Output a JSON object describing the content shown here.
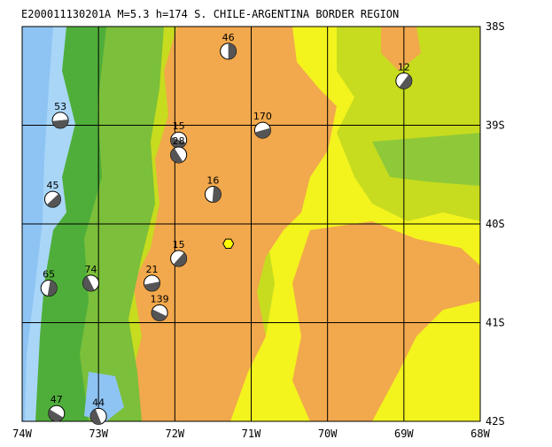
{
  "title": "E200011130201A M=5.3 h=174 S. CHILE-ARGENTINA BORDER REGION",
  "map": {
    "lon_range": [
      -74,
      -68
    ],
    "lat_range": [
      -42,
      -38
    ],
    "x_ticks": [
      "74W",
      "73W",
      "72W",
      "71W",
      "70W",
      "69W",
      "68W"
    ],
    "y_ticks": [
      "38S",
      "39S",
      "40S",
      "41S",
      "42S"
    ],
    "colors": {
      "ocean": "#8ec4f4",
      "shelf": "#a9d6f7",
      "lowland_green": "#4fae3a",
      "green": "#7bbf3a",
      "yellow_green": "#c7dc1e",
      "yellow": "#f3f31e",
      "orange": "#f2a84c",
      "grid": "#000000",
      "epicenter": "#ffff00"
    }
  },
  "epicenter": {
    "lon": -71.3,
    "lat": -40.2
  },
  "mechanisms": [
    {
      "label": "46",
      "lon": -71.3,
      "lat": -38.25
    },
    {
      "label": "12",
      "lon": -69.0,
      "lat": -38.55
    },
    {
      "label": "170",
      "lon": -70.85,
      "lat": -39.05
    },
    {
      "label": "15",
      "lon": -71.95,
      "lat": -39.15
    },
    {
      "label": "28",
      "lon": -71.95,
      "lat": -39.3
    },
    {
      "label": "16",
      "lon": -71.5,
      "lat": -39.7
    },
    {
      "label": "15",
      "lon": -71.95,
      "lat": -40.35
    },
    {
      "label": "21",
      "lon": -72.3,
      "lat": -40.6
    },
    {
      "label": "139",
      "lon": -72.2,
      "lat": -40.9
    },
    {
      "label": "74",
      "lon": -73.1,
      "lat": -40.6
    },
    {
      "label": "65",
      "lon": -73.65,
      "lat": -40.65
    },
    {
      "label": "45",
      "lon": -73.6,
      "lat": -39.75
    },
    {
      "label": "53",
      "lon": -73.5,
      "lat": -38.95
    },
    {
      "label": "47",
      "lon": -73.55,
      "lat": -41.92
    },
    {
      "label": "44",
      "lon": -73.0,
      "lat": -41.95
    }
  ]
}
